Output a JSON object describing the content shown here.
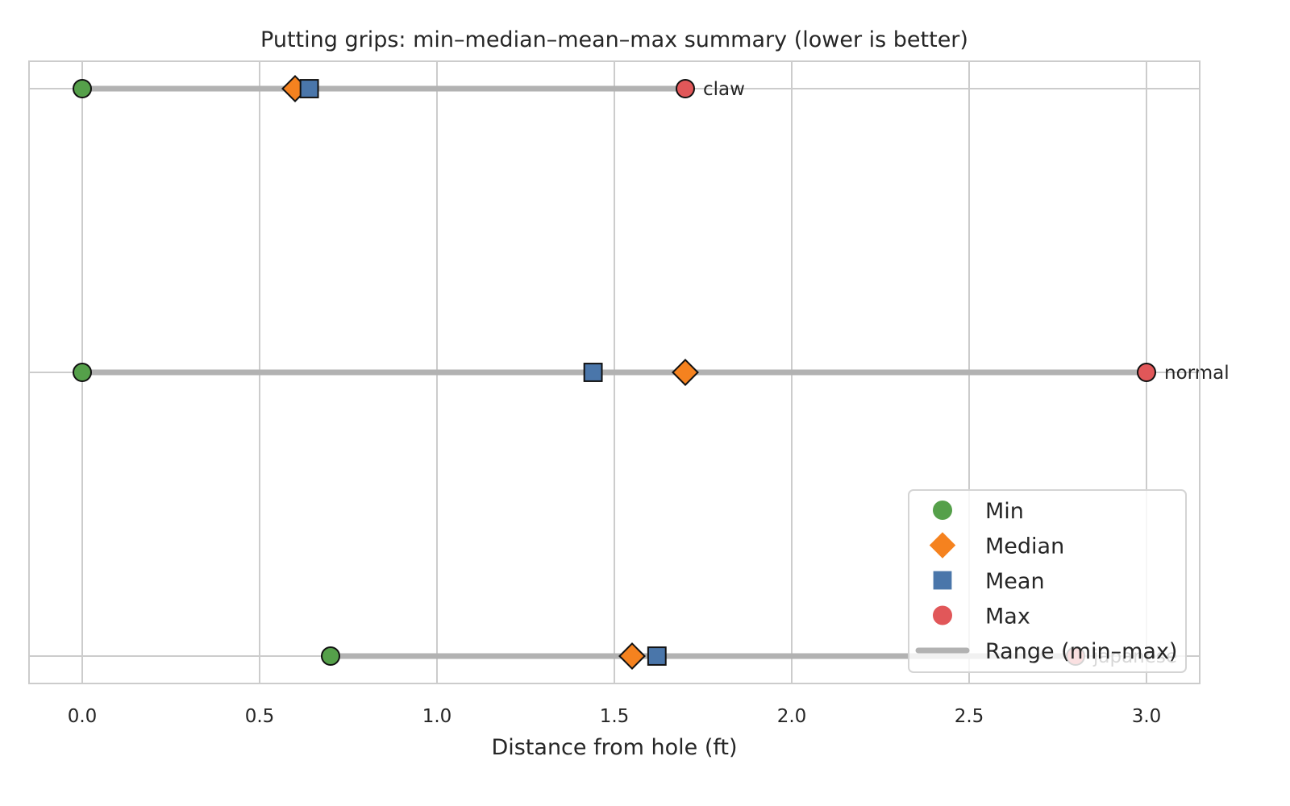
{
  "chart_data": {
    "type": "dot-range",
    "title": "Putting grips: min–median–mean–max summary (lower is better)",
    "xlabel": "Distance from hole (ft)",
    "ylabel": "",
    "xlim": [
      -0.15,
      3.15
    ],
    "xticks": [
      0.0,
      0.5,
      1.0,
      1.5,
      2.0,
      2.5,
      3.0
    ],
    "xtick_labels": [
      "0.0",
      "0.5",
      "1.0",
      "1.5",
      "2.0",
      "2.5",
      "3.0"
    ],
    "grid": true,
    "legend_position": "bottom-right",
    "categories": [
      "claw",
      "normal",
      "japanese"
    ],
    "series": [
      {
        "name": "Min",
        "marker": "circle",
        "color": "#55a04a",
        "values": [
          0.0,
          0.0,
          0.7
        ]
      },
      {
        "name": "Median",
        "marker": "diamond",
        "color": "#f5821f",
        "values": [
          0.6,
          1.7,
          1.55
        ]
      },
      {
        "name": "Mean",
        "marker": "square",
        "color": "#4a76aa",
        "values": [
          0.64,
          1.44,
          1.62
        ]
      },
      {
        "name": "Max",
        "marker": "circle",
        "color": "#e15759",
        "values": [
          1.7,
          3.0,
          2.8
        ]
      }
    ],
    "range_legend_label": "Range (min–max)",
    "range_color": "#b2b2b2"
  }
}
